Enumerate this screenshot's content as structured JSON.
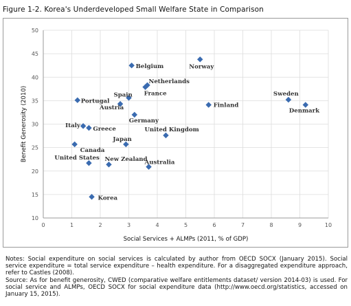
{
  "figure": {
    "title": "Figure 1-2. Korea's Underdeveloped Small Welfare State in Comparison"
  },
  "chart_data": {
    "type": "scatter",
    "xlabel": "Social Services + ALMPs (2011, % of GDP)",
    "ylabel": "Benefit Generosity (2010)",
    "xlim": [
      0,
      10
    ],
    "ylim": [
      10,
      50
    ],
    "x_ticks": [
      "0",
      "1",
      "2",
      "3",
      "4",
      "5",
      "6",
      "7",
      "8",
      "9",
      "10"
    ],
    "y_ticks": [
      "10",
      "15",
      "20",
      "25",
      "30",
      "35",
      "40",
      "45",
      "50"
    ],
    "grid": true,
    "marker_color": "#3a6bb0",
    "points": [
      {
        "label": "Norway",
        "x": 5.5,
        "y": 43.8
      },
      {
        "label": "Belgium",
        "x": 3.1,
        "y": 42.5
      },
      {
        "label": "Netherlands",
        "x": 3.65,
        "y": 38.3
      },
      {
        "label": "France",
        "x": 3.58,
        "y": 37.9
      },
      {
        "label": "Spain",
        "x": 3.0,
        "y": 35.6
      },
      {
        "label": "Portugal",
        "x": 1.2,
        "y": 35.1
      },
      {
        "label": "Austria",
        "x": 2.7,
        "y": 34.3
      },
      {
        "label": "Finland",
        "x": 5.8,
        "y": 34.1
      },
      {
        "label": "Sweden",
        "x": 8.6,
        "y": 35.2
      },
      {
        "label": "Denmark",
        "x": 9.2,
        "y": 34.1
      },
      {
        "label": "Germany",
        "x": 3.2,
        "y": 32.0
      },
      {
        "label": "Italy",
        "x": 1.4,
        "y": 29.6
      },
      {
        "label": "Greece",
        "x": 1.6,
        "y": 29.2
      },
      {
        "label": "United Kingdom",
        "x": 4.3,
        "y": 27.6
      },
      {
        "label": "Japan",
        "x": 2.9,
        "y": 25.7
      },
      {
        "label": "Canada",
        "x": 1.1,
        "y": 25.7
      },
      {
        "label": "United States",
        "x": 1.6,
        "y": 21.7
      },
      {
        "label": "New Zealand",
        "x": 2.3,
        "y": 21.4
      },
      {
        "label": "Australia",
        "x": 3.7,
        "y": 20.9
      },
      {
        "label": "Korea",
        "x": 1.7,
        "y": 14.5
      }
    ]
  },
  "notes": {
    "line1": "Notes: Social expenditure on social services is calculated by author from OECD SOCX (January 2015). Social service expenditure = total service expenditure – health expenditure. For a disaggregated expenditure approach, refer to Castles (2008).",
    "line2": "Source: As for benefit generosity, CWED (comparative welfare entitlements dataset/ version 2014-03) is used. For social service and ALMPs, OECD SOCX for social expenditure data (http://www.oecd.org/statistics, accessed on January 15, 2015)."
  }
}
